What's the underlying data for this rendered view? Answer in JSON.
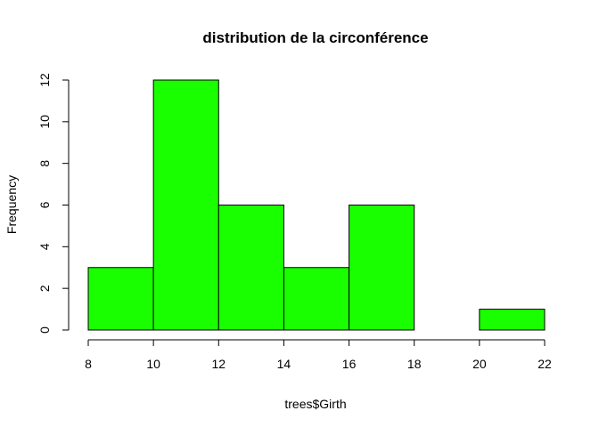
{
  "chart_data": {
    "type": "bar",
    "title": "distribution de la circonférence",
    "xlabel": "trees$Girth",
    "ylabel": "Frequency",
    "bins": [
      {
        "start": 8,
        "end": 10,
        "count": 3
      },
      {
        "start": 10,
        "end": 12,
        "count": 12
      },
      {
        "start": 12,
        "end": 14,
        "count": 6
      },
      {
        "start": 14,
        "end": 16,
        "count": 3
      },
      {
        "start": 16,
        "end": 18,
        "count": 6
      },
      {
        "start": 18,
        "end": 20,
        "count": 0
      },
      {
        "start": 20,
        "end": 22,
        "count": 1
      }
    ],
    "xticks": [
      8,
      10,
      12,
      14,
      16,
      18,
      20,
      22
    ],
    "yticks": [
      0,
      2,
      4,
      6,
      8,
      10,
      12
    ],
    "xlim": [
      8,
      22
    ],
    "ylim": [
      0,
      12
    ],
    "bar_color": "#1aff00",
    "grid": false
  }
}
